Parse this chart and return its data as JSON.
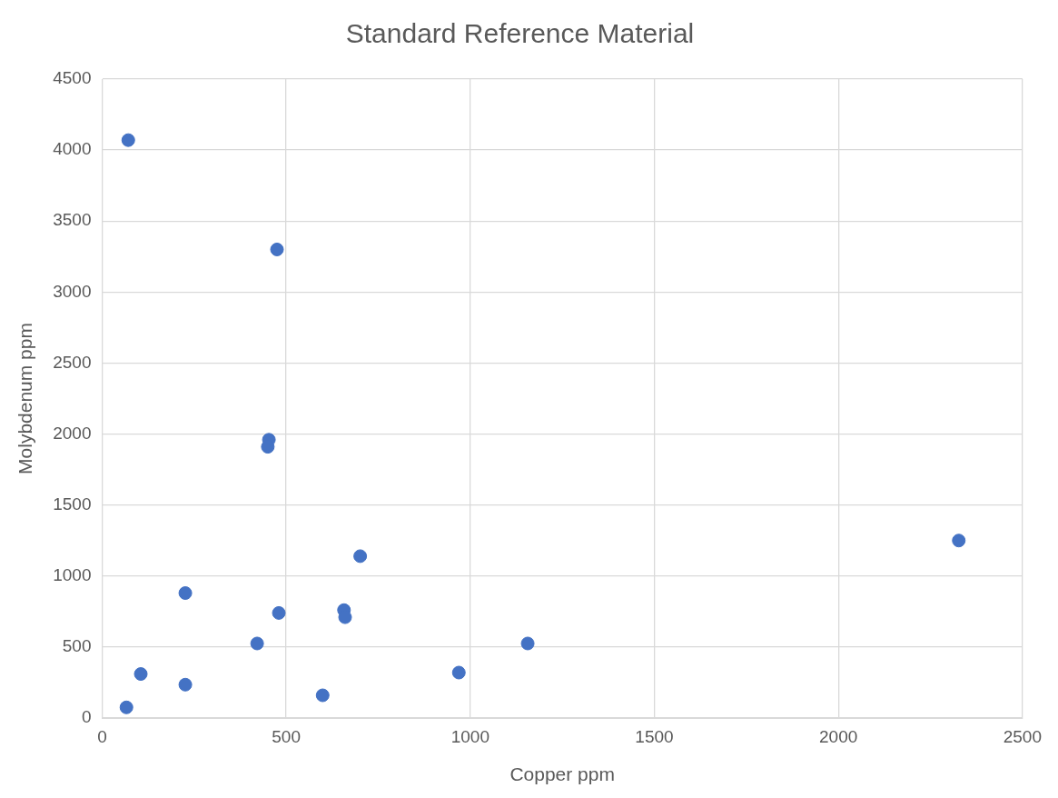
{
  "chart_data": {
    "type": "scatter",
    "title": "Standard Reference Material",
    "xlabel": "Copper ppm",
    "ylabel": "Molybdenum ppm",
    "x": [
      71,
      475,
      453,
      450,
      701,
      2327,
      226,
      480,
      657,
      660,
      421,
      1156,
      105,
      226,
      969,
      599,
      66
    ],
    "series": [
      {
        "color": "#4472c4",
        "values": [
          4070,
          3300,
          1960,
          1910,
          1140,
          1250,
          880,
          740,
          760,
          710,
          525,
          525,
          310,
          235,
          320,
          160,
          75
        ]
      }
    ],
    "xlim": [
      0,
      2500
    ],
    "xticks": [
      0,
      500,
      1000,
      1500,
      2000,
      2500
    ],
    "ylim": [
      0,
      4500
    ],
    "yticks": [
      0,
      500,
      1000,
      1500,
      2000,
      2500,
      3000,
      3500,
      4000,
      4500
    ],
    "grid": true,
    "legend": false,
    "marker": "circle"
  }
}
